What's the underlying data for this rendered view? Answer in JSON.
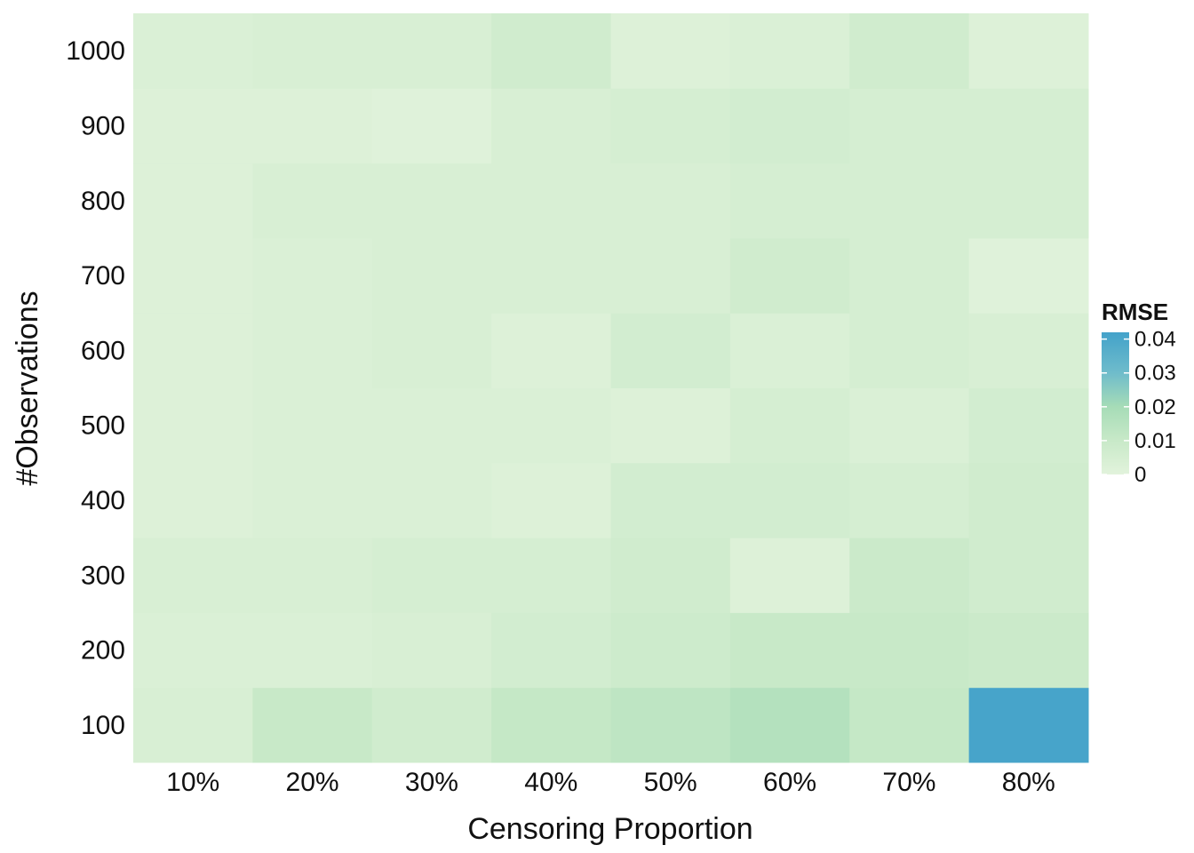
{
  "chart_data": {
    "type": "heatmap",
    "title": "",
    "xlabel": "Censoring Proportion",
    "ylabel": "#Observations",
    "x_categories": [
      "10%",
      "20%",
      "30%",
      "40%",
      "50%",
      "60%",
      "70%",
      "80%"
    ],
    "y_categories": [
      "100",
      "200",
      "300",
      "400",
      "500",
      "600",
      "700",
      "800",
      "900",
      "1000"
    ],
    "values": [
      [
        0.004,
        0.01,
        0.007,
        0.011,
        0.013,
        0.016,
        0.011,
        0.041
      ],
      [
        0.003,
        0.003,
        0.004,
        0.006,
        0.008,
        0.01,
        0.01,
        0.009
      ],
      [
        0.004,
        0.004,
        0.005,
        0.005,
        0.007,
        0.002,
        0.009,
        0.007
      ],
      [
        0.002,
        0.003,
        0.003,
        0.002,
        0.006,
        0.006,
        0.005,
        0.007
      ],
      [
        0.002,
        0.003,
        0.003,
        0.003,
        0.002,
        0.005,
        0.003,
        0.006
      ],
      [
        0.002,
        0.003,
        0.004,
        0.002,
        0.006,
        0.003,
        0.005,
        0.004
      ],
      [
        0.002,
        0.003,
        0.004,
        0.004,
        0.004,
        0.007,
        0.005,
        0.001
      ],
      [
        0.002,
        0.004,
        0.004,
        0.004,
        0.004,
        0.005,
        0.005,
        0.005
      ],
      [
        0.002,
        0.002,
        0.001,
        0.004,
        0.005,
        0.006,
        0.005,
        0.005
      ],
      [
        0.003,
        0.004,
        0.004,
        0.007,
        0.002,
        0.003,
        0.007,
        0.002
      ]
    ],
    "legend": {
      "title": "RMSE",
      "ticks": [
        0,
        0.01,
        0.02,
        0.03,
        0.04
      ],
      "tick_labels": [
        "0",
        "0.01",
        "0.02",
        "0.03",
        "0.04"
      ],
      "placement": "right"
    },
    "color_scale": {
      "domain": [
        0,
        0.01,
        0.02,
        0.03,
        0.042
      ],
      "colors": [
        "#e2f3dc",
        "#c8e9c8",
        "#a6dcb7",
        "#6fbccb",
        "#43a2ca"
      ]
    },
    "grid": false
  }
}
